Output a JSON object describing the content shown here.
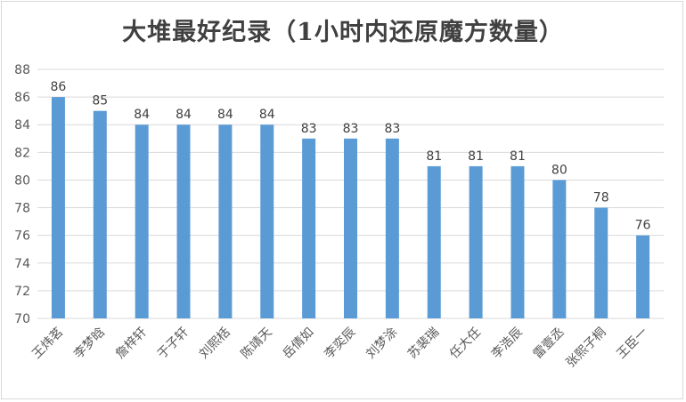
{
  "chart_data": {
    "type": "bar",
    "title": "大堆最好纪录（1小时内还原魔方数量）",
    "categories": [
      "王炜茗",
      "李梦晗",
      "詹梓轩",
      "于子轩",
      "刘熙栝",
      "陈靖天",
      "岳倩如",
      "李奕辰",
      "刘梦涂",
      "苏裴瑞",
      "任大任",
      "李浩辰",
      "雷壹丞",
      "张熙子桐",
      "王臣一"
    ],
    "values": [
      86,
      85,
      84,
      84,
      84,
      84,
      83,
      83,
      83,
      81,
      81,
      81,
      80,
      78,
      76
    ],
    "ylim": [
      70,
      88
    ],
    "yticks": [
      70,
      72,
      74,
      76,
      78,
      80,
      82,
      84,
      86,
      88
    ],
    "xlabel": "",
    "ylabel": "",
    "grid": true,
    "bar_color": "#5b9bd5",
    "grid_color": "#d9d9d9"
  }
}
